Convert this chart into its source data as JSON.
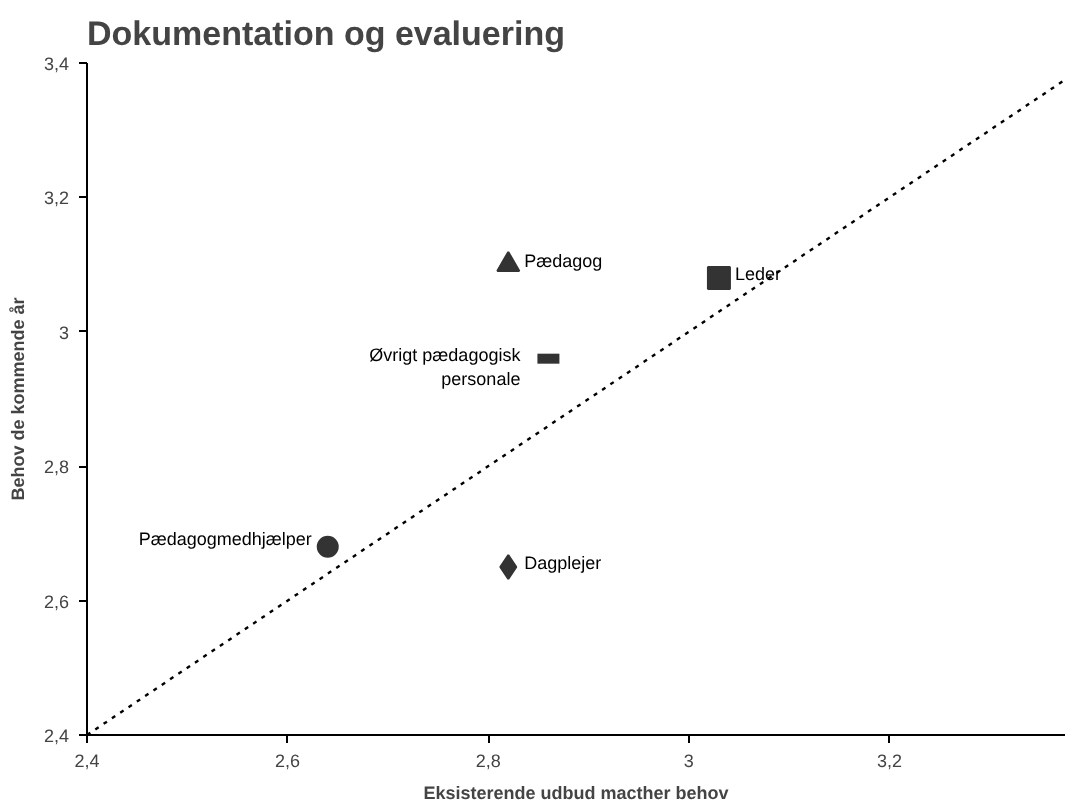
{
  "chart_data": {
    "type": "scatter",
    "title": "Dokumentation og evaluering",
    "xlabel": "Eksisterende udbud macther behov",
    "ylabel": "Behov de kommende år",
    "xlim": [
      2.4,
      3.375
    ],
    "ylim": [
      2.4,
      3.4
    ],
    "xticks": [
      {
        "value": 2.4,
        "label": "2,4"
      },
      {
        "value": 2.6,
        "label": "2,6"
      },
      {
        "value": 2.8,
        "label": "2,8"
      },
      {
        "value": 3,
        "label": "3"
      },
      {
        "value": 3.2,
        "label": "3,2"
      }
    ],
    "yticks": [
      {
        "value": 2.4,
        "label": "2,4"
      },
      {
        "value": 2.6,
        "label": "2,6"
      },
      {
        "value": 2.8,
        "label": "2,8"
      },
      {
        "value": 3,
        "label": "3"
      },
      {
        "value": 3.2,
        "label": "3,2"
      },
      {
        "value": 3.4,
        "label": "3,4"
      }
    ],
    "grid": false,
    "series": [
      {
        "name": "Pædagog",
        "color": "#333333",
        "marker": "triangle",
        "x": [
          2.82
        ],
        "values": [
          3.1
        ]
      },
      {
        "name": "Leder",
        "color": "#333333",
        "marker": "square",
        "x": [
          3.03
        ],
        "values": [
          3.08
        ]
      },
      {
        "name": "Øvrigt pædagogisk personale",
        "color": "#333333",
        "x": [
          2.86
        ],
        "values": [
          2.96
        ]
      },
      {
        "name": "Pædagogmedhjælper",
        "color": "#333333",
        "marker": "circle",
        "x": [
          2.64
        ],
        "values": [
          2.68
        ]
      },
      {
        "name": "Dagplejer",
        "color": "#333333",
        "marker": "diamond",
        "x": [
          2.82
        ],
        "values": [
          2.65
        ]
      },
      {
        "type": "line",
        "color": "#000000",
        "line_style": "dotted",
        "marker": "none",
        "x": [
          2.4,
          3.375
        ],
        "values": [
          2.4,
          3.375
        ]
      }
    ]
  }
}
